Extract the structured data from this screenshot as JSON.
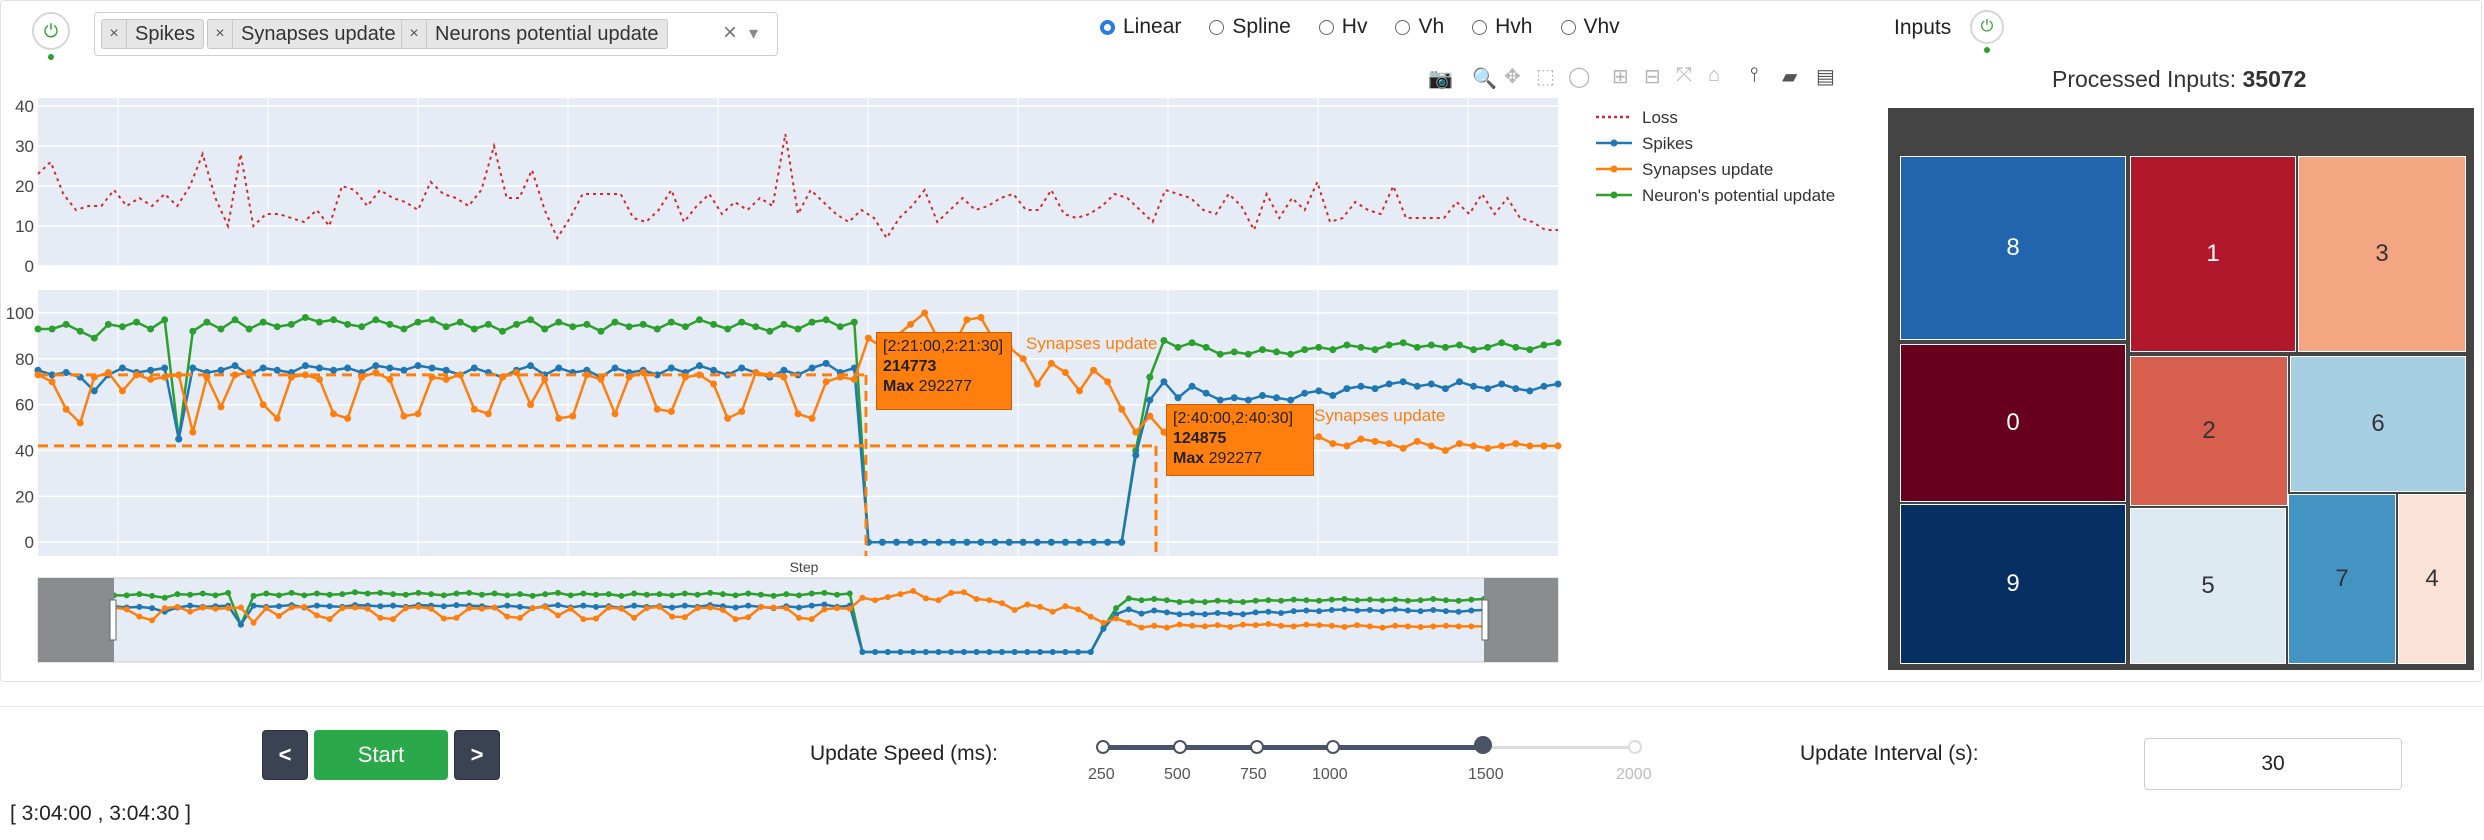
{
  "left_toggle": {
    "icon": "power-icon",
    "color": "#2ca02c"
  },
  "metric_select": {
    "chips": [
      {
        "label": "Spikes"
      },
      {
        "label": "Synapses update"
      },
      {
        "label": "Neurons potential update"
      }
    ],
    "clear_symbol": "×",
    "dropdown_symbol": "▾"
  },
  "line_modes": {
    "options": [
      "Linear",
      "Spline",
      "Hv",
      "Vh",
      "Hvh",
      "Vhv"
    ],
    "selected": "Linear"
  },
  "inputs_panel": {
    "title": "Inputs",
    "processed_label": "Processed Inputs:",
    "processed_value": "35072"
  },
  "legend": [
    "Loss",
    "Spikes",
    "Synapses update",
    "Neuron's potential update"
  ],
  "colors": {
    "loss": "#d62728",
    "spikes": "#1f77b4",
    "synapses": "#ff7f0e",
    "neurons": "#2ca02c",
    "plot_bg": "#e5ecf6"
  },
  "toolbar_icons": [
    "camera-icon",
    "zoom-icon",
    "pan-icon",
    "box-select-icon",
    "lasso-icon",
    "zoom-in-icon",
    "zoom-out-icon",
    "autoscale-icon",
    "reset-axes-icon",
    "spike-lines-icon",
    "hover-closest-icon",
    "hover-compare-icon"
  ],
  "chart_data": [
    {
      "type": "line",
      "title": "",
      "yticks": [
        0,
        10,
        20,
        30,
        40
      ],
      "ylim": [
        0,
        42
      ],
      "series": [
        {
          "name": "Loss",
          "style": "dotted",
          "values": [
            23,
            26,
            18,
            14,
            15,
            15,
            19,
            15,
            17,
            15,
            18,
            15,
            20,
            28,
            17,
            10,
            28,
            10,
            13,
            13,
            12,
            11,
            14,
            10,
            20,
            19,
            15,
            19,
            17,
            16,
            14,
            21,
            18,
            17,
            15,
            19,
            30,
            17,
            17,
            24,
            14,
            7,
            12,
            18,
            18,
            18,
            18,
            12,
            11,
            14,
            19,
            11,
            15,
            18,
            13,
            16,
            14,
            17,
            15,
            33,
            13,
            19,
            16,
            13,
            11,
            14,
            12,
            7,
            12,
            15,
            19,
            11,
            14,
            17,
            14,
            15,
            17,
            18,
            14,
            14,
            19,
            13,
            12,
            13,
            15,
            18,
            17,
            14,
            11,
            19,
            18,
            17,
            14,
            13,
            18,
            15,
            9,
            18,
            12,
            17,
            14,
            21,
            11,
            12,
            16,
            14,
            13,
            20,
            12,
            12,
            12,
            12,
            16,
            13,
            18,
            13,
            17,
            12,
            11,
            9,
            9
          ]
        }
      ]
    },
    {
      "type": "line",
      "yticks": [
        0,
        20,
        40,
        60,
        80,
        100
      ],
      "ylim": [
        -6,
        110
      ],
      "xlabel": "Step",
      "series": [
        {
          "name": "Neuron's potential update",
          "values": [
            93,
            93,
            95,
            92,
            89,
            95,
            94,
            96,
            93,
            97,
            45,
            92,
            96,
            93,
            97,
            93,
            96,
            94,
            95,
            98,
            96,
            97,
            95,
            94,
            97,
            95,
            93,
            96,
            97,
            94,
            96,
            93,
            95,
            92,
            95,
            97,
            93,
            96,
            94,
            95,
            92,
            96,
            94,
            95,
            93,
            96,
            94,
            97,
            95,
            93,
            96,
            94,
            92,
            95,
            93,
            96,
            97,
            94,
            96,
            0,
            0,
            0,
            0,
            0,
            0,
            0,
            0,
            0,
            0,
            0,
            0,
            0,
            0,
            0,
            0,
            0,
            0,
            0,
            40,
            72,
            88,
            85,
            87,
            85,
            82,
            83,
            82,
            84,
            83,
            82,
            84,
            85,
            84,
            86,
            85,
            84,
            86,
            87,
            85,
            86,
            85,
            86,
            84,
            85,
            87,
            85,
            84,
            86,
            87
          ]
        },
        {
          "name": "Spikes",
          "values": [
            75,
            73,
            74,
            72,
            66,
            73,
            76,
            74,
            75,
            76,
            45,
            76,
            74,
            75,
            77,
            73,
            76,
            75,
            74,
            77,
            76,
            75,
            76,
            74,
            77,
            76,
            75,
            77,
            76,
            75,
            73,
            76,
            74,
            72,
            75,
            77,
            73,
            76,
            74,
            75,
            72,
            76,
            74,
            75,
            73,
            76,
            74,
            77,
            75,
            73,
            76,
            74,
            72,
            75,
            73,
            76,
            78,
            74,
            76,
            0,
            0,
            0,
            0,
            0,
            0,
            0,
            0,
            0,
            0,
            0,
            0,
            0,
            0,
            0,
            0,
            0,
            0,
            0,
            38,
            62,
            70,
            63,
            68,
            65,
            62,
            63,
            62,
            64,
            63,
            62,
            65,
            66,
            64,
            67,
            68,
            67,
            69,
            70,
            68,
            69,
            67,
            70,
            68,
            67,
            69,
            67,
            66,
            68,
            69
          ]
        },
        {
          "name": "Synapses update",
          "values": [
            73,
            70,
            58,
            52,
            72,
            74,
            66,
            73,
            71,
            72,
            73,
            48,
            72,
            59,
            73,
            74,
            60,
            54,
            72,
            73,
            71,
            56,
            54,
            72,
            74,
            71,
            55,
            56,
            72,
            71,
            73,
            58,
            56,
            72,
            74,
            60,
            71,
            54,
            55,
            73,
            71,
            56,
            72,
            74,
            58,
            57,
            72,
            73,
            69,
            54,
            57,
            74,
            73,
            72,
            56,
            54,
            70,
            72,
            71,
            89,
            85,
            90,
            95,
            100,
            88,
            85,
            97,
            98,
            87,
            85,
            80,
            69,
            78,
            74,
            66,
            75,
            70,
            58,
            48,
            55,
            48,
            40,
            43,
            40,
            45,
            43,
            42,
            44,
            41,
            45,
            44,
            46,
            43,
            42,
            45,
            44,
            43,
            41,
            44,
            42,
            40,
            43,
            42,
            41,
            42,
            43,
            42,
            42,
            42
          ]
        }
      ]
    }
  ],
  "annotations": [
    {
      "range": "[2:21:00,2:21:30]",
      "value": "214773",
      "max_label": "Max",
      "max_value": "292277",
      "series_label": "Synapses update"
    },
    {
      "range": "[2:40:00,2:40:30]",
      "value": "124875",
      "max_label": "Max",
      "max_value": "292277",
      "series_label": "Synapses update"
    }
  ],
  "treemap": [
    {
      "label": "8",
      "color": "#2166ac",
      "text_color": "#ffffff"
    },
    {
      "label": "1",
      "color": "#b2182b",
      "text_color": "#ffffff"
    },
    {
      "label": "3",
      "color": "#f4a582",
      "text_color": "#333333"
    },
    {
      "label": "0",
      "color": "#67001f",
      "text_color": "#ffffff"
    },
    {
      "label": "2",
      "color": "#d6604d",
      "text_color": "#333333"
    },
    {
      "label": "6",
      "color": "#a6cfe3",
      "text_color": "#333333"
    },
    {
      "label": "9",
      "color": "#053061",
      "text_color": "#ffffff"
    },
    {
      "label": "5",
      "color": "#deeaf2",
      "text_color": "#333333"
    },
    {
      "label": "7",
      "color": "#4393c3",
      "text_color": "#333333"
    },
    {
      "label": "4",
      "color": "#fae3d6",
      "text_color": "#333333"
    }
  ],
  "controls": {
    "prev_label": "<",
    "start_label": "Start",
    "next_label": ">",
    "speed_label": "Update Speed (ms):",
    "speed_ticks": [
      "250",
      "500",
      "750",
      "1000",
      "1500",
      "2000"
    ],
    "speed_value": "1500",
    "interval_label": "Update Interval (s):",
    "interval_value": "30",
    "time_range": "[ 3:04:00 , 3:04:30 ]"
  }
}
